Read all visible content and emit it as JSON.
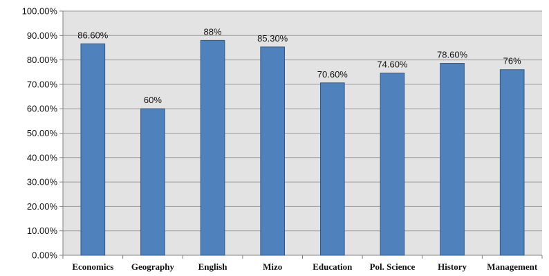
{
  "chart_data": {
    "type": "bar",
    "categories": [
      "Economics",
      "Geography",
      "English",
      "Mizo",
      "Education",
      "Pol. Science",
      "History",
      "Management"
    ],
    "values": [
      86.6,
      60,
      88,
      85.3,
      70.6,
      74.6,
      78.6,
      76
    ],
    "data_labels": [
      "86.60%",
      "60%",
      "88%",
      "85.30%",
      "70.60%",
      "74.60%",
      "78.60%",
      "76%"
    ],
    "yticks": [
      0,
      10,
      20,
      30,
      40,
      50,
      60,
      70,
      80,
      90,
      100
    ],
    "ytick_labels": [
      "0.00%",
      "10.00%",
      "20.00%",
      "30.00%",
      "40.00%",
      "50.00%",
      "60.00%",
      "70.00%",
      "80.00%",
      "90.00%",
      "100.00%"
    ],
    "ylim": [
      0,
      100
    ],
    "title": "",
    "xlabel": "",
    "ylabel": "",
    "grid": true,
    "legend": "none",
    "colors": {
      "bar_fill": "#4f81bd",
      "bar_stroke": "#2f5a8c",
      "plot_bg": "#e3e3e3",
      "grid": "#9a9a9a",
      "axis": "#808080"
    }
  }
}
